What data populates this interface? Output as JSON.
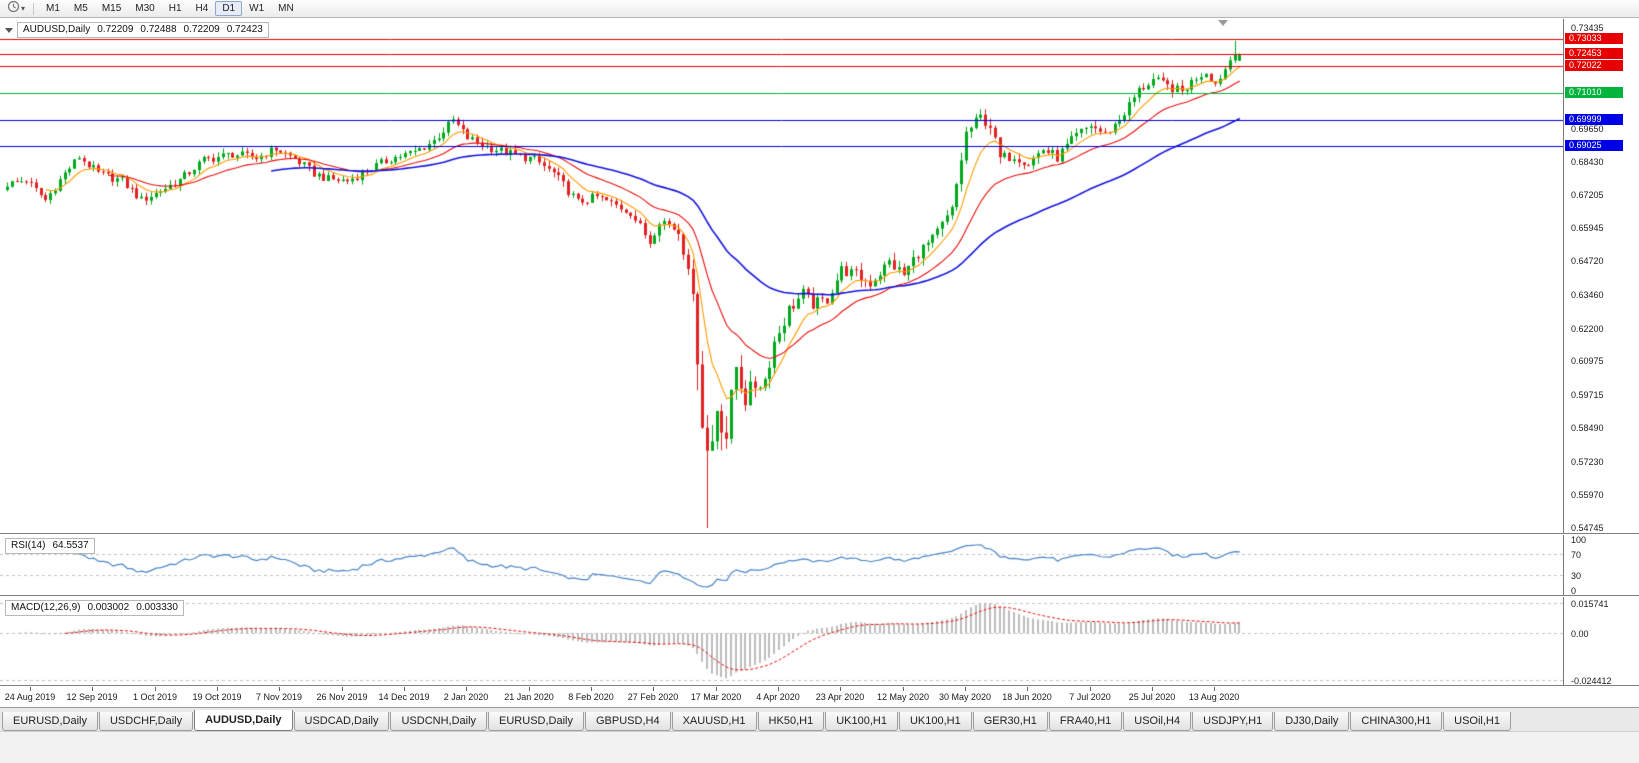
{
  "toolbar": {
    "periods": [
      "M1",
      "M5",
      "M15",
      "M30",
      "H1",
      "H4",
      "D1",
      "W1",
      "MN"
    ],
    "active_period": "D1",
    "icons": {
      "periods": "clock",
      "dropdown": "chevron-down"
    }
  },
  "chart": {
    "header": {
      "symbol": "AUDUSD,Daily",
      "open": "0.72209",
      "high": "0.72488",
      "low": "0.72209",
      "close": "0.72423",
      "collapse_icon": "triangle-down"
    },
    "price_axis_ticks": [
      "0.73435",
      "0.69650",
      "0.68430",
      "0.67205",
      "0.65945",
      "0.64720",
      "0.63460",
      "0.62200",
      "0.60975",
      "0.59715",
      "0.58490",
      "0.57230",
      "0.55970",
      "0.54745"
    ],
    "lines": [
      {
        "price": 0.73033,
        "label": "0.73033",
        "color": "#e60000",
        "type": "resistance"
      },
      {
        "price": 0.72453,
        "label": "0.72453",
        "color": "#e60000",
        "type": "resistance"
      },
      {
        "price": 0.72022,
        "label": "0.72022",
        "color": "#e60000",
        "type": "resistance"
      },
      {
        "price": 0.7101,
        "label": "0.71010",
        "color": "#00b43c",
        "type": "support"
      },
      {
        "price": 0.69999,
        "label": "0.69999",
        "color": "#0000e6",
        "type": "support"
      },
      {
        "price": 0.69025,
        "label": "0.69025",
        "color": "#0000e6",
        "type": "support"
      }
    ],
    "date_labels": [
      "24 Aug 2019",
      "12 Sep 2019",
      "1 Oct 2019",
      "19 Oct 2019",
      "7 Nov 2019",
      "26 Nov 2019",
      "14 Dec 2019",
      "2 Jan 2020",
      "21 Jan 2020",
      "8 Feb 2020",
      "27 Feb 2020",
      "17 Mar 2020",
      "4 Apr 2020",
      "23 Apr 2020",
      "12 May 2020",
      "30 May 2020",
      "18 Jun 2020",
      "7 Jul 2020",
      "25 Jul 2020",
      "13 Aug 2020"
    ],
    "colors": {
      "bull": "#00a81e",
      "bear": "#e02222",
      "ma_fast": "#ff9c00",
      "ma_mid": "#e81010",
      "ma_slow": "#1414dc",
      "rsi_line": "#4a86c8",
      "macd_hist": "#bdbdbd",
      "macd_signal": "#e81010"
    }
  },
  "rsi": {
    "label": "RSI(14)",
    "value": "64.5537",
    "axis_labels": [
      "100",
      "70",
      "30",
      "0"
    ],
    "levels": [
      70,
      30
    ]
  },
  "macd": {
    "label": "MACD(12,26,9)",
    "main_value": "0.003002",
    "signal_value": "0.003330",
    "axis_labels": [
      "0.015741",
      "0.00",
      "-0.024412"
    ],
    "scale_max": 0.015741,
    "scale_min": -0.024412
  },
  "tabs": {
    "items": [
      "EURUSD,Daily",
      "USDCHF,Daily",
      "AUDUSD,Daily",
      "USDCAD,Daily",
      "USDCNH,Daily",
      "EURUSD,Daily",
      "GBPUSD,H4",
      "XAUUSD,H1",
      "HK50,H1",
      "UK100,H1",
      "UK100,H1",
      "GER30,H1",
      "FRA40,H1",
      "USOil,H4",
      "USDJPY,H1",
      "DJ30,Daily",
      "CHINA300,H1",
      "USOil,H1"
    ],
    "active_index": 2
  },
  "chart_data": {
    "type": "candlestick",
    "title": "AUDUSD Daily",
    "x_range": [
      "24 Aug 2019",
      "26 Aug 2020"
    ],
    "y_range": [
      0.54745,
      0.73435
    ],
    "candle_count": 258,
    "approx": true,
    "close_keyframes": [
      [
        0,
        0.676
      ],
      [
        4,
        0.6775
      ],
      [
        8,
        0.67
      ],
      [
        12,
        0.68
      ],
      [
        15,
        0.6862
      ],
      [
        19,
        0.68
      ],
      [
        24,
        0.6772
      ],
      [
        28,
        0.67
      ],
      [
        31,
        0.6725
      ],
      [
        36,
        0.6775
      ],
      [
        41,
        0.685
      ],
      [
        47,
        0.6872
      ],
      [
        52,
        0.6858
      ],
      [
        56,
        0.6892
      ],
      [
        60,
        0.6855
      ],
      [
        64,
        0.68
      ],
      [
        67,
        0.6778
      ],
      [
        71,
        0.6772
      ],
      [
        75,
        0.681
      ],
      [
        80,
        0.6855
      ],
      [
        85,
        0.688
      ],
      [
        89,
        0.6922
      ],
      [
        93,
        0.6998
      ],
      [
        96,
        0.6932
      ],
      [
        100,
        0.69
      ],
      [
        106,
        0.6868
      ],
      [
        110,
        0.6852
      ],
      [
        114,
        0.68
      ],
      [
        119,
        0.6692
      ],
      [
        123,
        0.6712
      ],
      [
        127,
        0.668
      ],
      [
        130,
        0.6655
      ],
      [
        132,
        0.66
      ],
      [
        134,
        0.6545
      ],
      [
        136,
        0.663
      ],
      [
        138,
        0.661
      ],
      [
        140,
        0.6585
      ],
      [
        142,
        0.648
      ],
      [
        144,
        0.613
      ],
      [
        145,
        0.588
      ],
      [
        146,
        0.576
      ],
      [
        147,
        0.58
      ],
      [
        148,
        0.593
      ],
      [
        150,
        0.582
      ],
      [
        152,
        0.608
      ],
      [
        154,
        0.596
      ],
      [
        156,
        0.601
      ],
      [
        158,
        0.603
      ],
      [
        160,
        0.617
      ],
      [
        163,
        0.629
      ],
      [
        166,
        0.635
      ],
      [
        168,
        0.631
      ],
      [
        171,
        0.633
      ],
      [
        174,
        0.644
      ],
      [
        177,
        0.642
      ],
      [
        180,
        0.639
      ],
      [
        184,
        0.6468
      ],
      [
        187,
        0.642
      ],
      [
        190,
        0.6505
      ],
      [
        193,
        0.655
      ],
      [
        197,
        0.666
      ],
      [
        200,
        0.695
      ],
      [
        203,
        0.701
      ],
      [
        205,
        0.698
      ],
      [
        207,
        0.6855
      ],
      [
        210,
        0.6868
      ],
      [
        213,
        0.684
      ],
      [
        216,
        0.689
      ],
      [
        219,
        0.686
      ],
      [
        223,
        0.694
      ],
      [
        226,
        0.698
      ],
      [
        229,
        0.6945
      ],
      [
        232,
        0.7
      ],
      [
        236,
        0.711
      ],
      [
        239,
        0.715
      ],
      [
        242,
        0.7125
      ],
      [
        245,
        0.7105
      ],
      [
        248,
        0.716
      ],
      [
        250,
        0.718
      ],
      [
        252,
        0.7135
      ],
      [
        254,
        0.719
      ],
      [
        256,
        0.726
      ],
      [
        257,
        0.72423
      ]
    ],
    "volatility_keyframes": [
      [
        0,
        0.0022
      ],
      [
        130,
        0.0024
      ],
      [
        138,
        0.0032
      ],
      [
        141,
        0.006
      ],
      [
        147,
        0.0085
      ],
      [
        152,
        0.0065
      ],
      [
        158,
        0.0045
      ],
      [
        168,
        0.003
      ],
      [
        196,
        0.0034
      ],
      [
        206,
        0.003
      ],
      [
        236,
        0.0026
      ],
      [
        257,
        0.0022
      ]
    ],
    "wick_events": [
      {
        "index": 144,
        "low": 0.599
      },
      {
        "index": 146,
        "low": 0.54745
      },
      {
        "index": 203,
        "high": 0.704
      },
      {
        "index": 256,
        "high": 0.7296
      }
    ],
    "last_candle": {
      "open": 0.72209,
      "high": 0.72488,
      "low": 0.72209,
      "close": 0.72423
    },
    "moving_averages": [
      {
        "name": "ema-fast",
        "period": 8,
        "color_key": "ma_fast"
      },
      {
        "name": "ema-mid",
        "period": 21,
        "color_key": "ma_mid"
      },
      {
        "name": "ema-slow",
        "period": 55,
        "color_key": "ma_slow"
      }
    ],
    "indicators": [
      {
        "name": "RSI",
        "period": 14,
        "current": 64.5537
      },
      {
        "name": "MACD",
        "fast": 12,
        "slow": 26,
        "signal": 9,
        "current_main": 0.003002,
        "current_signal": 0.00333
      }
    ]
  }
}
